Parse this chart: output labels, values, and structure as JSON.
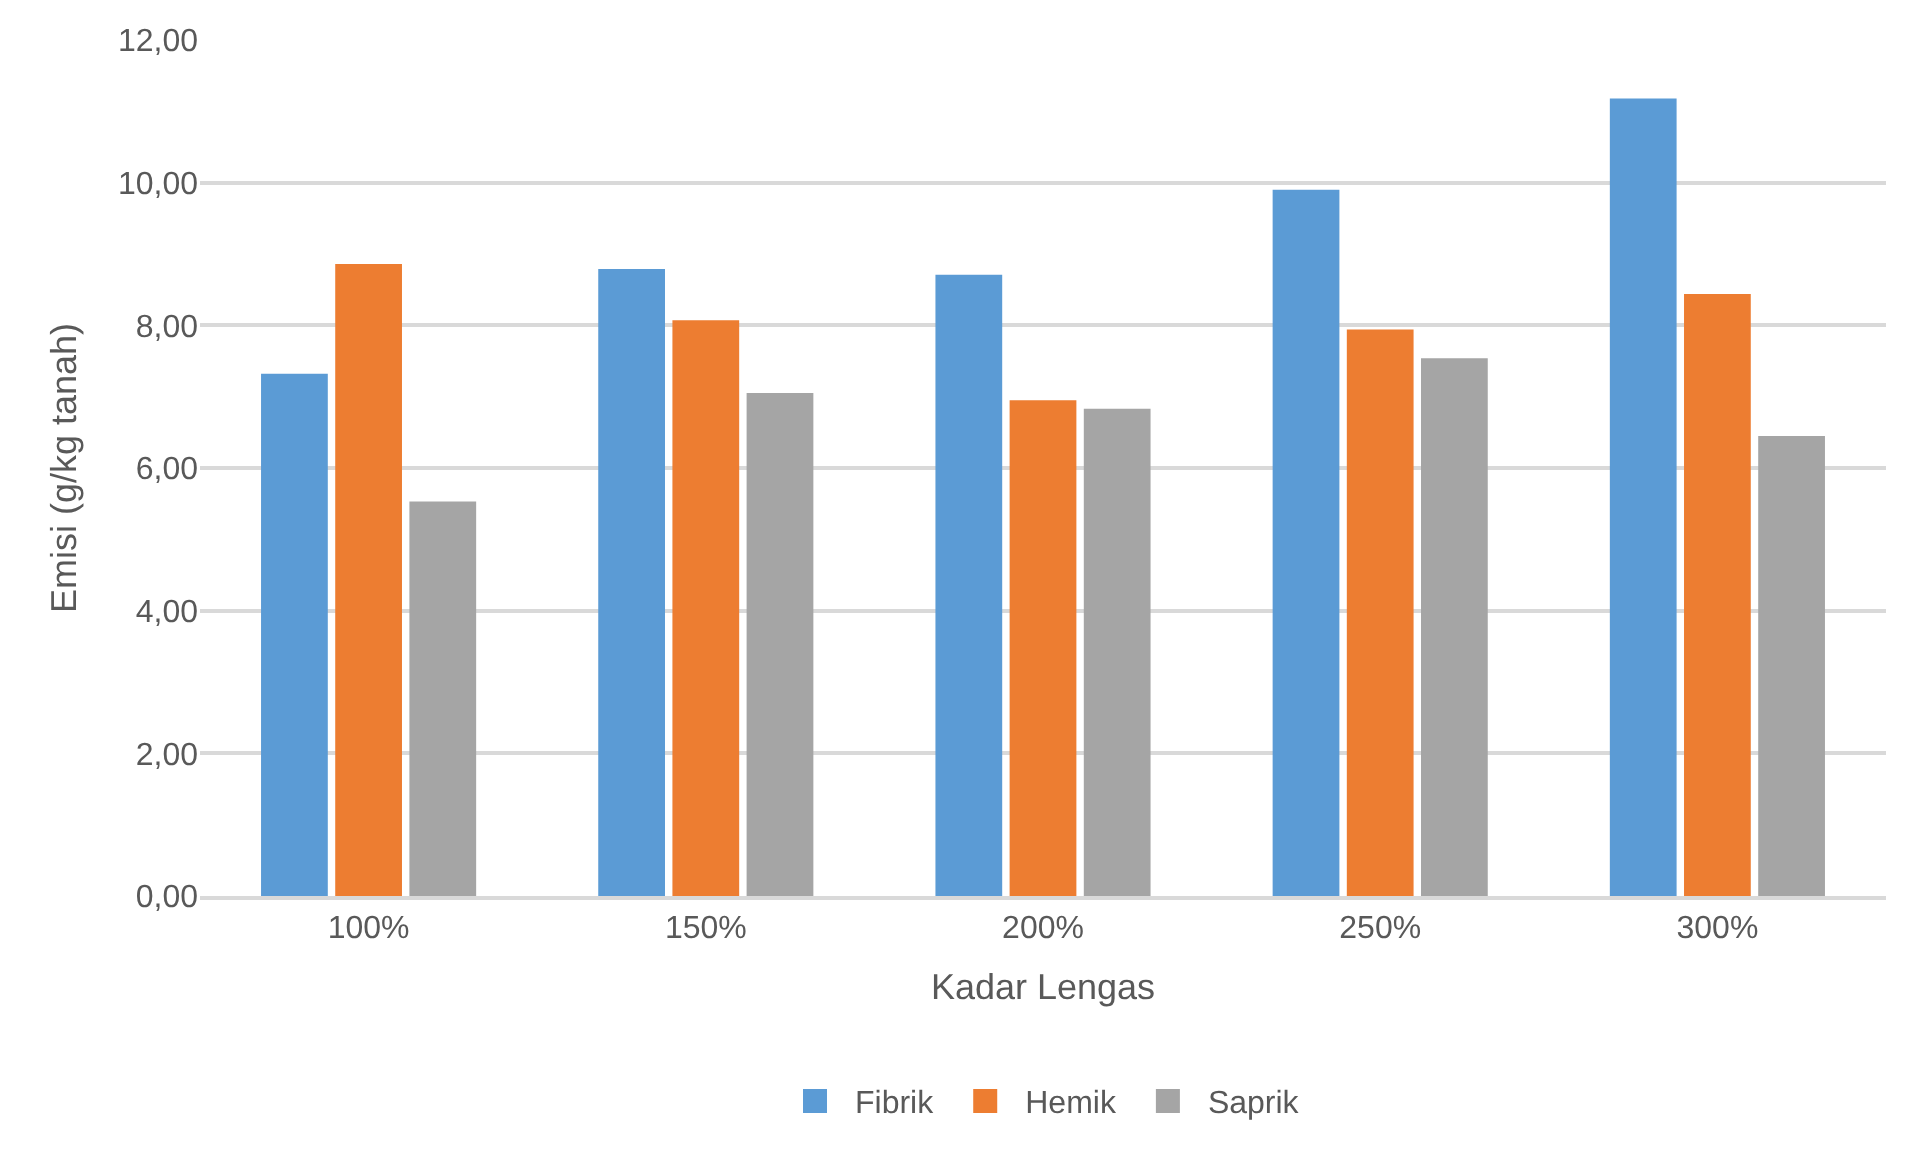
{
  "chart_data": {
    "type": "bar",
    "xlabel": "Kadar Lengas",
    "ylabel": "Emisi (g/kg tanah)",
    "categories": [
      "100%",
      "150%",
      "200%",
      "250%",
      "300%"
    ],
    "series": [
      {
        "name": "Fibrik",
        "color": "#5b9bd5",
        "values": [
          7.32,
          8.79,
          8.71,
          9.9,
          11.18
        ]
      },
      {
        "name": "Hemik",
        "color": "#ed7d31",
        "values": [
          8.86,
          8.07,
          6.95,
          7.94,
          8.44
        ]
      },
      {
        "name": "Saprik",
        "color": "#a5a5a5",
        "values": [
          5.53,
          7.05,
          6.83,
          7.54,
          6.45
        ]
      }
    ],
    "ylim": [
      0,
      12
    ],
    "yticks": [
      {
        "value": 0,
        "label": "0,00"
      },
      {
        "value": 2,
        "label": "2,00"
      },
      {
        "value": 4,
        "label": "4,00"
      },
      {
        "value": 6,
        "label": "6,00"
      },
      {
        "value": 8,
        "label": "8,00"
      },
      {
        "value": 10,
        "label": "10,00"
      },
      {
        "value": 12,
        "label": "12,00"
      }
    ],
    "grid": "y",
    "legend": "bottom"
  }
}
